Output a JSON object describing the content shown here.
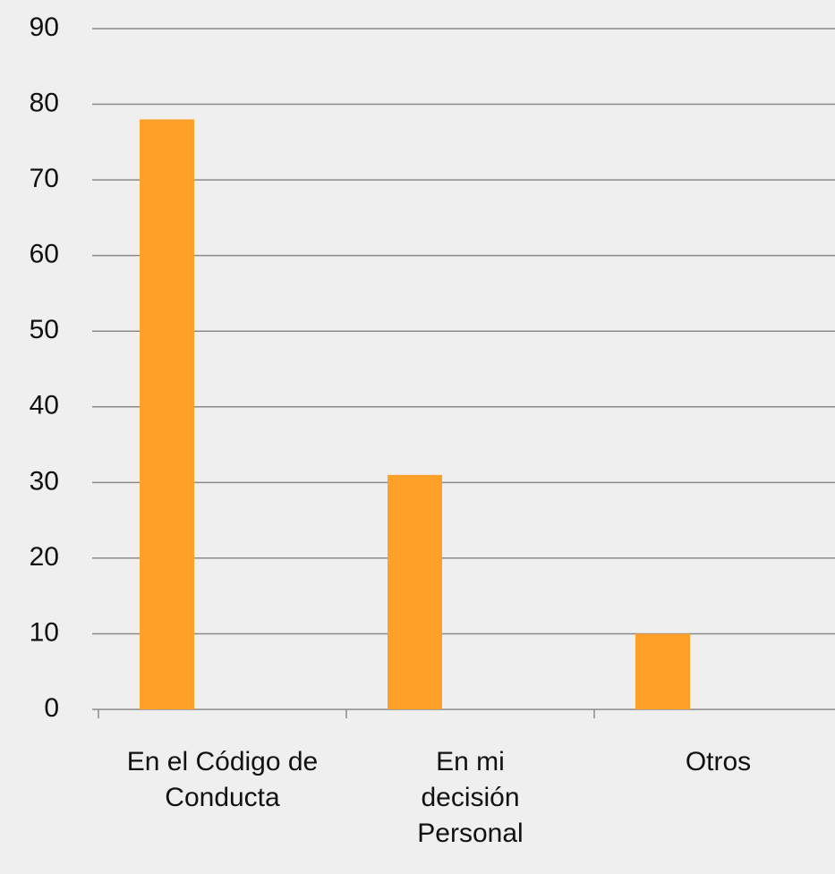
{
  "chart_data": {
    "type": "bar",
    "categories": [
      "En el Código de Conducta",
      "En mi decisión Personal",
      "Otros"
    ],
    "values": [
      78,
      31,
      10
    ],
    "color": "#ffa028",
    "ylim": [
      0,
      90
    ],
    "yticks": [
      0,
      10,
      20,
      30,
      40,
      50,
      60,
      70,
      80,
      90
    ],
    "grid": true
  }
}
